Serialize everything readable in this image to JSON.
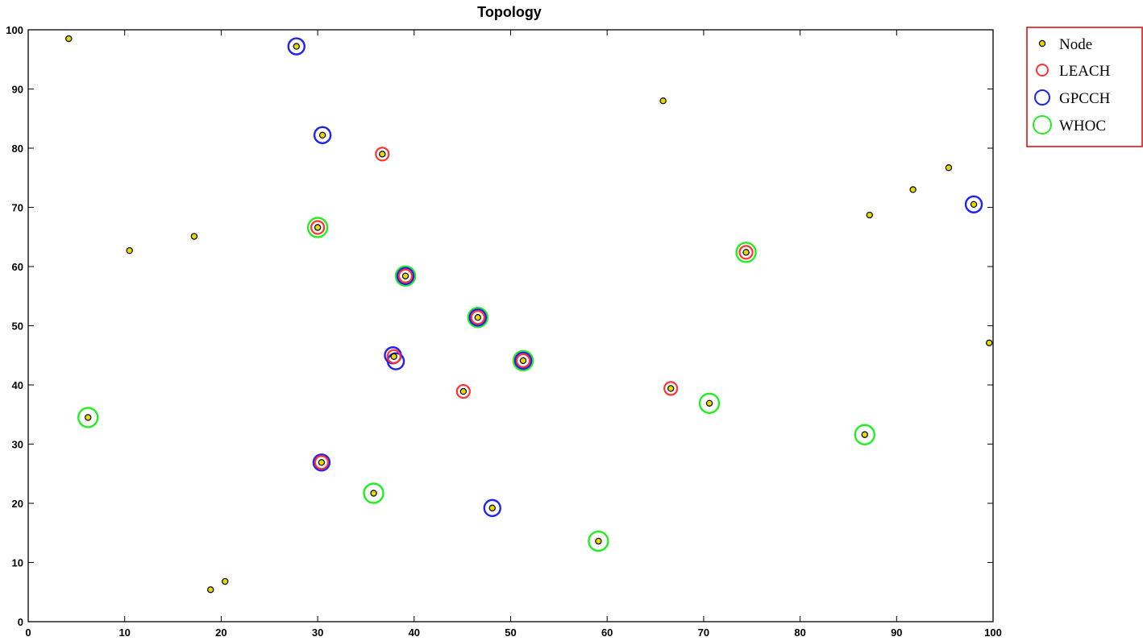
{
  "chart_data": {
    "type": "scatter",
    "title": "Topology",
    "xlabel": "",
    "ylabel": "",
    "xlim": [
      0,
      100
    ],
    "ylim": [
      0,
      100
    ],
    "xticks": [
      0,
      10,
      20,
      30,
      40,
      50,
      60,
      70,
      80,
      90,
      100
    ],
    "yticks": [
      0,
      10,
      20,
      30,
      40,
      50,
      60,
      70,
      80,
      90,
      100
    ],
    "grid": false,
    "legend_position": "outside-top-right",
    "series": [
      {
        "name": "Node",
        "marker": "dot",
        "color": "#e6d800",
        "edge_color": "#000000",
        "points": [
          [
            4.2,
            98.5
          ],
          [
            27.8,
            97.2
          ],
          [
            65.8,
            88.0
          ],
          [
            30.5,
            82.2
          ],
          [
            36.7,
            79.0
          ],
          [
            95.4,
            76.7
          ],
          [
            91.7,
            73.0
          ],
          [
            98.0,
            70.5
          ],
          [
            87.2,
            68.7
          ],
          [
            30.0,
            66.6
          ],
          [
            17.2,
            65.1
          ],
          [
            10.5,
            62.7
          ],
          [
            74.4,
            62.4
          ],
          [
            39.1,
            58.4
          ],
          [
            46.6,
            51.4
          ],
          [
            99.6,
            47.1
          ],
          [
            37.9,
            44.8
          ],
          [
            51.3,
            44.1
          ],
          [
            66.6,
            39.4
          ],
          [
            45.1,
            38.9
          ],
          [
            70.6,
            36.9
          ],
          [
            6.2,
            34.5
          ],
          [
            86.7,
            31.6
          ],
          [
            30.4,
            26.9
          ],
          [
            35.8,
            21.7
          ],
          [
            48.1,
            19.2
          ],
          [
            59.1,
            13.6
          ],
          [
            20.4,
            6.8
          ],
          [
            18.9,
            5.4
          ]
        ]
      },
      {
        "name": "LEACH",
        "marker": "circle",
        "color": "#ff3333",
        "points": [
          [
            36.7,
            79.0
          ],
          [
            30.0,
            66.6
          ],
          [
            74.4,
            62.4
          ],
          [
            45.1,
            38.9
          ],
          [
            66.6,
            39.4
          ],
          [
            39.1,
            58.4
          ],
          [
            46.6,
            51.4
          ],
          [
            51.3,
            44.1
          ],
          [
            30.4,
            26.9
          ],
          [
            37.9,
            44.8
          ]
        ]
      },
      {
        "name": "GPCCH",
        "marker": "circle",
        "color": "#2222ee",
        "points": [
          [
            27.8,
            97.2
          ],
          [
            30.5,
            82.2
          ],
          [
            98.0,
            70.5
          ],
          [
            39.1,
            58.4
          ],
          [
            46.6,
            51.4
          ],
          [
            51.3,
            44.1
          ],
          [
            37.8,
            45.0
          ],
          [
            38.1,
            44.0
          ],
          [
            30.4,
            26.9
          ],
          [
            48.1,
            19.2
          ]
        ]
      },
      {
        "name": "WHOC",
        "marker": "circle",
        "color": "#22ee22",
        "points": [
          [
            30.0,
            66.6
          ],
          [
            74.4,
            62.4
          ],
          [
            39.1,
            58.4
          ],
          [
            46.6,
            51.4
          ],
          [
            51.3,
            44.1
          ],
          [
            70.6,
            36.9
          ],
          [
            6.2,
            34.5
          ],
          [
            86.7,
            31.6
          ],
          [
            35.8,
            21.7
          ],
          [
            59.1,
            13.6
          ]
        ]
      }
    ],
    "legend_border_color": "#dd0000"
  }
}
